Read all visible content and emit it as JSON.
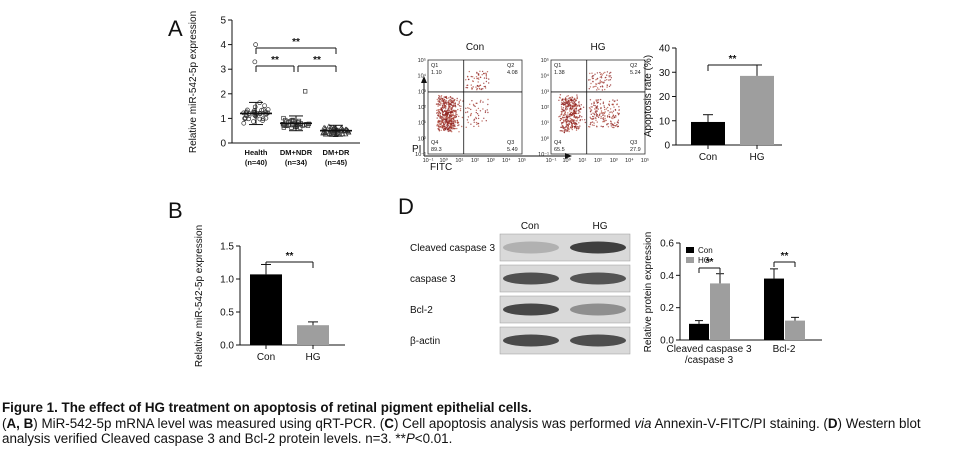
{
  "panels": {
    "A": {
      "letter": "A",
      "chart_data": {
        "type": "scatter",
        "title": "",
        "ylabel": "Relative miR-542-5p expression",
        "ylim": [
          0,
          5
        ],
        "yticks": [
          "0",
          "1",
          "2",
          "3",
          "4",
          "5"
        ],
        "categories": [
          "Health (n=40)",
          "DM+NDR (n=34)",
          "DM+DR (n=45)"
        ],
        "category_lines": [
          [
            "Health",
            "(n=40)"
          ],
          [
            "DM+NDR",
            "(n=34)"
          ],
          [
            "DM+DR",
            "(n=45)"
          ]
        ],
        "means": [
          1.2,
          0.8,
          0.5
        ],
        "sd": [
          0.45,
          0.3,
          0.22
        ],
        "n": [
          40,
          34,
          45
        ],
        "significance": [
          {
            "pair": [
              0,
              1
            ],
            "label": "**"
          },
          {
            "pair": [
              1,
              2
            ],
            "label": "**"
          },
          {
            "pair": [
              0,
              2
            ],
            "label": "**"
          }
        ]
      }
    },
    "B": {
      "letter": "B",
      "chart_data": {
        "type": "bar",
        "ylabel": "Relative miR-542-5p expression",
        "ylim": [
          0,
          1.5
        ],
        "yticks": [
          "0.0",
          "0.5",
          "1.0",
          "1.5"
        ],
        "categories": [
          "Con",
          "HG"
        ],
        "values": [
          1.07,
          0.3
        ],
        "errors": [
          0.15,
          0.05
        ],
        "colors": [
          "#000000",
          "#9e9e9e"
        ],
        "significance": [
          {
            "pair": [
              0,
              1
            ],
            "label": "**"
          }
        ]
      }
    },
    "C": {
      "letter": "C",
      "flow": [
        {
          "title": "Con",
          "quadrants": [
            "1.10",
            "4.08",
            "89.3",
            "5.49"
          ]
        },
        {
          "title": "HG",
          "quadrants": [
            "1.38",
            "5.24",
            "65.5",
            "27.9"
          ]
        }
      ],
      "quadrant_names": [
        "Q1",
        "Q2",
        "Q4",
        "Q3"
      ],
      "log_ticks": [
        "10⁻¹",
        "10⁰",
        "10¹",
        "10²",
        "10³",
        "10⁴",
        "10⁵"
      ],
      "pi_label": "PI",
      "fitc_label": "FITC",
      "chart_data": {
        "type": "bar",
        "ylabel": "Apoptosis rate (%)",
        "ylim": [
          0,
          40
        ],
        "yticks": [
          "0",
          "10",
          "20",
          "30",
          "40"
        ],
        "categories": [
          "Con",
          "HG"
        ],
        "values": [
          9.5,
          28.5
        ],
        "errors": [
          3,
          4.5
        ],
        "colors": [
          "#000000",
          "#9e9e9e"
        ],
        "significance": [
          {
            "pair": [
              0,
              1
            ],
            "label": "**"
          }
        ]
      }
    },
    "D": {
      "letter": "D",
      "blot": {
        "lane_labels": [
          "Con",
          "HG"
        ],
        "rows": [
          "Cleaved caspase 3",
          "caspase 3",
          "Bcl-2",
          "β-actin"
        ]
      },
      "chart_data": {
        "type": "bar",
        "ylabel": "Relative protein expression",
        "ylim": [
          0,
          0.6
        ],
        "yticks": [
          "0.0",
          "0.2",
          "0.4",
          "0.6"
        ],
        "categories": [
          "Cleaved caspase 3 /caspase 3",
          "Bcl-2"
        ],
        "category_lines": [
          [
            "Cleaved caspase 3",
            "/caspase 3"
          ],
          [
            "Bcl-2"
          ]
        ],
        "series": [
          {
            "name": "Con",
            "values": [
              0.1,
              0.38
            ],
            "errors": [
              0.02,
              0.06
            ],
            "color": "#000000"
          },
          {
            "name": "HG",
            "values": [
              0.35,
              0.12
            ],
            "errors": [
              0.06,
              0.02
            ],
            "color": "#9e9e9e"
          }
        ],
        "legend_placement": "top-left",
        "significance": [
          {
            "group": 0,
            "label": "**"
          },
          {
            "group": 1,
            "label": "**"
          }
        ]
      }
    }
  },
  "caption": {
    "title": "Figure 1. The effect of HG treatment on apoptosis of retinal pigment epithelial cells.",
    "open_paren": "(",
    "ab": "A, B",
    "text1": ") MiR-542-5p mRNA level was measured using qRT-PCR. (",
    "c": "C",
    "text2": ") Cell apoptosis analysis was performed ",
    "via": "via",
    "text3": " Annexin-V-FITC/PI staining. (",
    "d": "D",
    "text4": ") Western blot analysis verified Cleaved caspase 3 and Bcl-2 protein levels. n=3. **",
    "p": "P",
    "text5": "<0.01."
  }
}
